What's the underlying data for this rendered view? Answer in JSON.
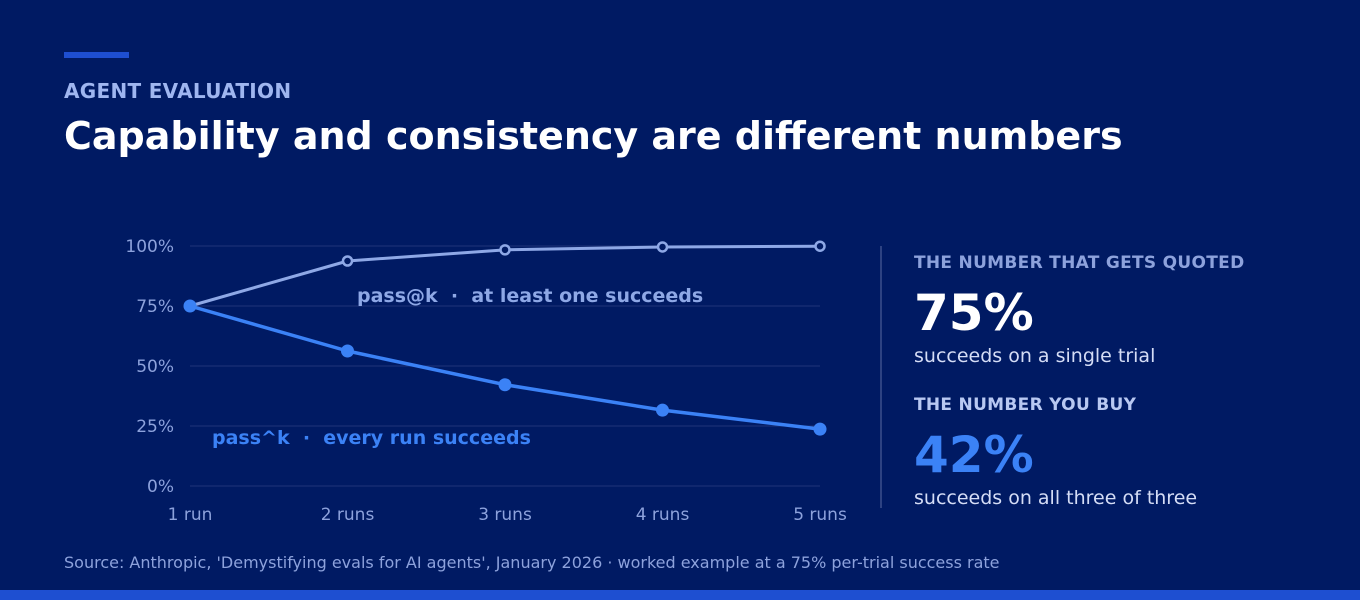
{
  "header": {
    "eyebrow": "AGENT EVALUATION",
    "title": "Capability and consistency are different numbers"
  },
  "kpis": [
    {
      "label": "THE NUMBER THAT GETS QUOTED",
      "value": "75%",
      "desc": "succeeds on a single trial",
      "label_color": "#8da2dc",
      "value_color": "#ffffff"
    },
    {
      "label": "THE NUMBER YOU BUY",
      "value": "42%",
      "desc": "succeeds on all three of three",
      "label_color": "#b8c8f2",
      "value_color": "#3b82f6"
    }
  ],
  "source": "Source: Anthropic, 'Demystifying evals for AI agents', January 2026  ·  worked example at a 75% per-trial success rate",
  "colors": {
    "background": "#001a63",
    "accent": "#1e4fd1",
    "pass_at_k": "#8ea8e6",
    "pass_hat_k": "#3b82f6"
  },
  "chart_data": {
    "type": "line",
    "categories": [
      "1 run",
      "2 runs",
      "3 runs",
      "4 runs",
      "5 runs"
    ],
    "y_ticks": [
      "0%",
      "25%",
      "50%",
      "75%",
      "100%"
    ],
    "ylim": [
      0,
      100
    ],
    "grid": true,
    "series": [
      {
        "name": "pass@k  ·  at least one succeeds",
        "values": [
          75,
          93.75,
          98.4,
          99.6,
          99.9
        ],
        "color": "#8ea8e6",
        "marker": "hollow"
      },
      {
        "name": "pass^k  ·  every run succeeds",
        "values": [
          75,
          56.25,
          42.2,
          31.6,
          23.7
        ],
        "color": "#3b82f6",
        "marker": "filled"
      }
    ]
  }
}
